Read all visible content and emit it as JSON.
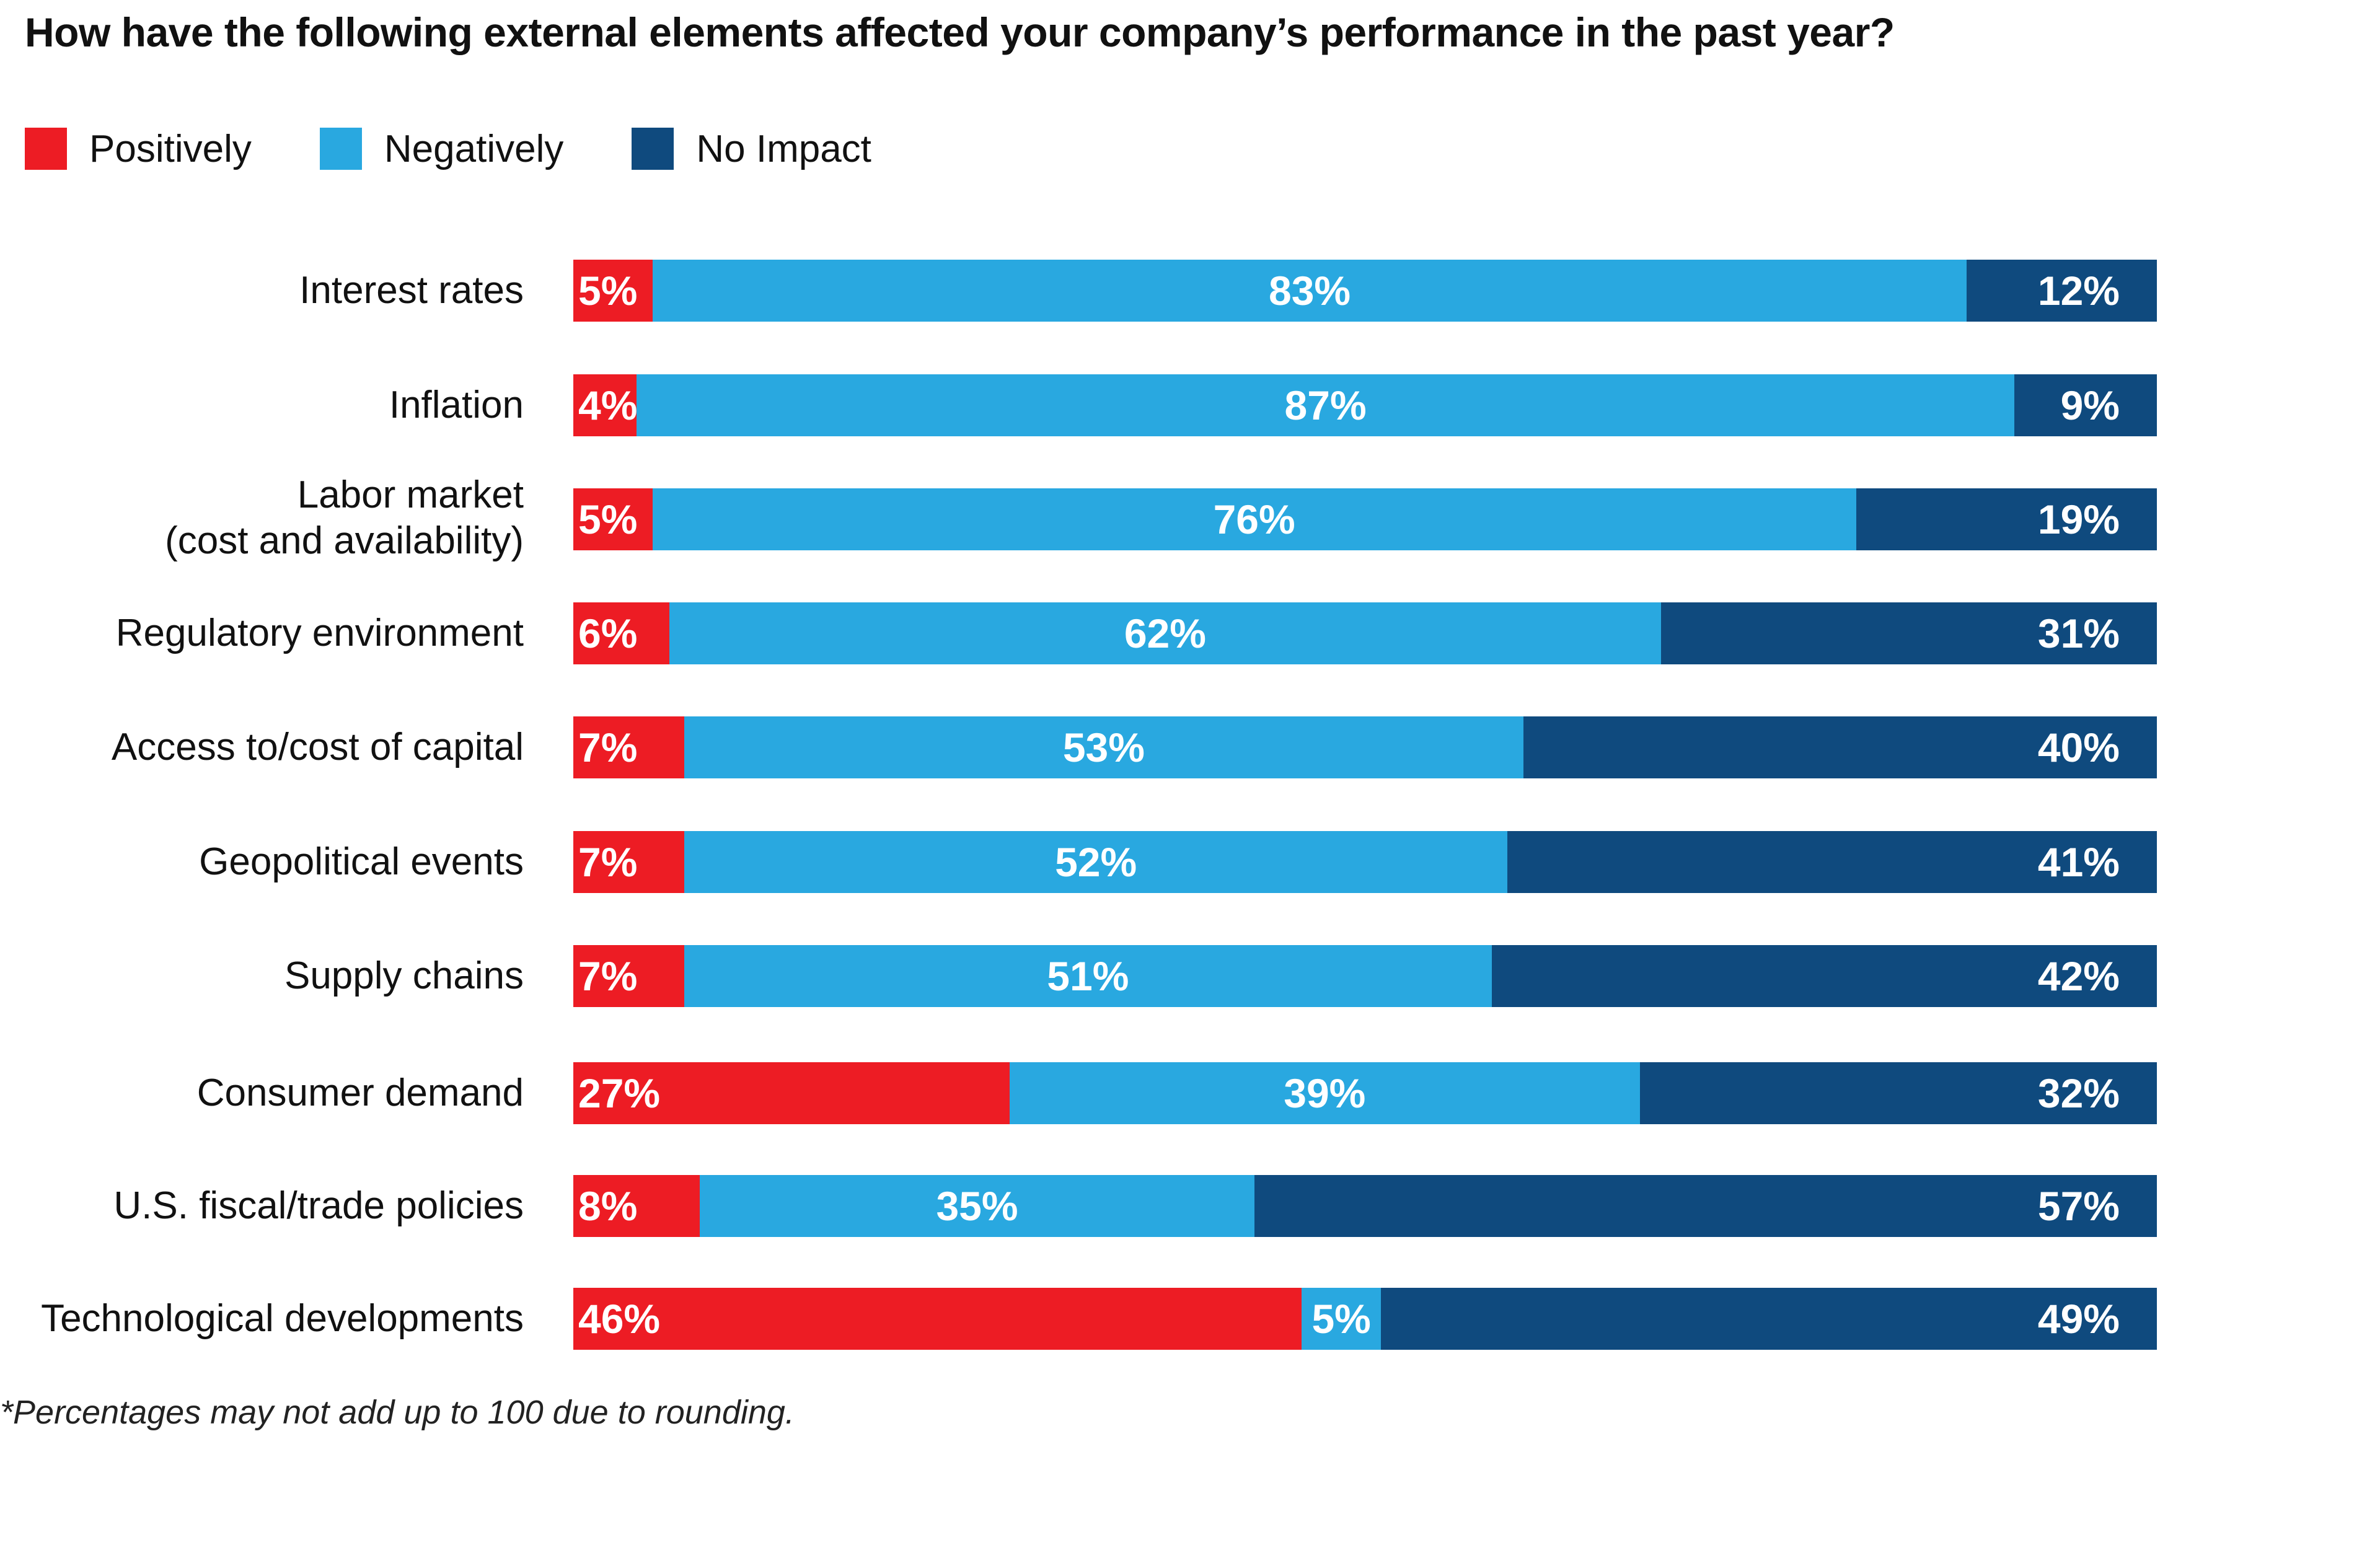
{
  "chart_data": {
    "type": "bar",
    "orientation": "horizontal",
    "stacked": true,
    "title": "How have the following external elements affected your company’s performance in the past year?",
    "xlabel": "",
    "ylabel": "",
    "xlim": [
      0,
      100
    ],
    "grid": false,
    "legend_position": "top-left",
    "categories": [
      "Interest rates",
      "Inflation",
      "Labor market\n(cost and availability)",
      "Regulatory environment",
      "Access to/cost of capital",
      "Geopolitical events",
      "Supply chains",
      "Consumer demand",
      "U.S. fiscal/trade policies",
      "Technological developments"
    ],
    "series": [
      {
        "name": "Positively",
        "color": "#ed1c24",
        "values": [
          5,
          4,
          5,
          6,
          7,
          7,
          7,
          27,
          8,
          46
        ]
      },
      {
        "name": "Negatively",
        "color": "#29a8e0",
        "values": [
          83,
          87,
          76,
          62,
          53,
          52,
          51,
          39,
          35,
          5
        ]
      },
      {
        "name": "No Impact",
        "color": "#0f4a7e",
        "values": [
          12,
          9,
          19,
          31,
          40,
          41,
          42,
          32,
          57,
          49
        ]
      }
    ],
    "value_suffix": "%",
    "footnote": "*Percentages may not add up to 100 due to rounding."
  }
}
